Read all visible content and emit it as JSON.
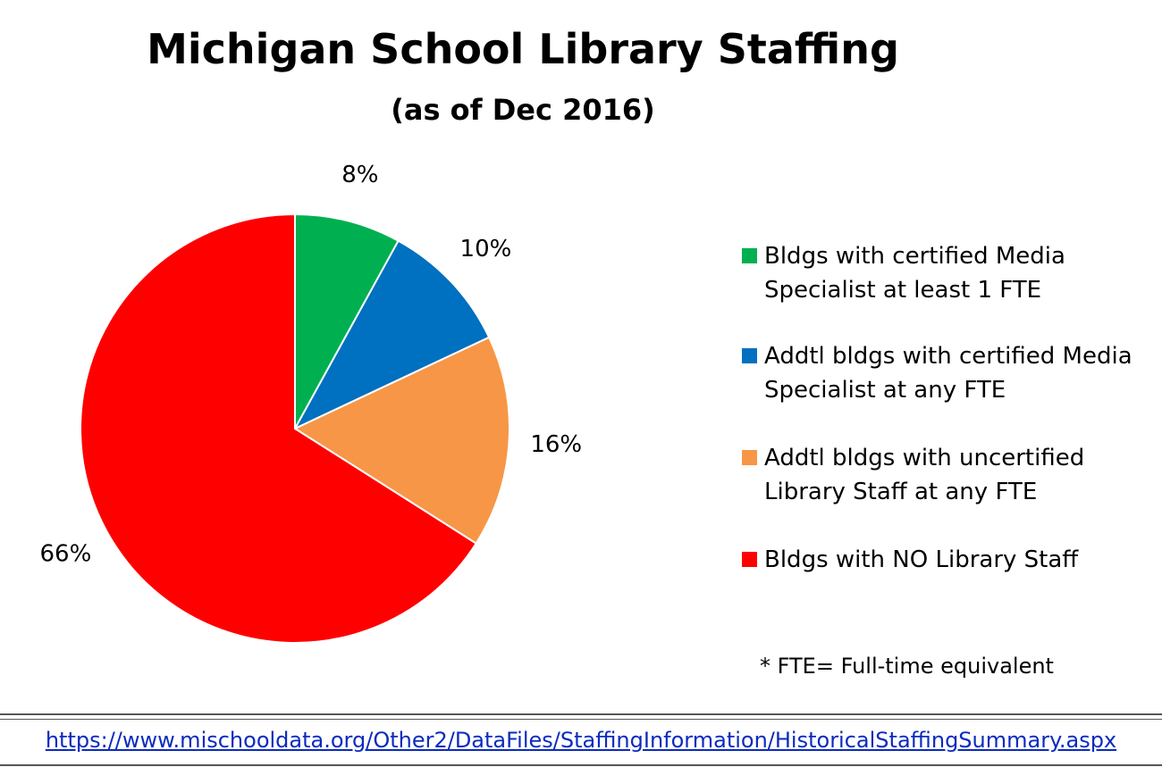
{
  "chart_data": {
    "type": "pie",
    "title": "Michigan School Library Staffing",
    "subtitle": "(as of Dec 2016)",
    "categories": [
      "Bldgs with certified Media Specialist at least 1 FTE",
      "Addtl bldgs with certified Media Specialist at any FTE",
      "Addtl bldgs with uncertified Library Staff at any FTE",
      "Bldgs with NO Library Staff"
    ],
    "values": [
      8,
      10,
      16,
      66
    ],
    "value_labels": [
      "8%",
      "10%",
      "16%",
      "66%"
    ],
    "colors": [
      "#00b050",
      "#0070c0",
      "#f79646",
      "#ff0000"
    ],
    "footnote": "* FTE= Full-time equivalent",
    "source": "https://www.mischooldata.org/Other2/DataFiles/StaffingInformation/HistoricalStaffingSummary.aspx"
  }
}
